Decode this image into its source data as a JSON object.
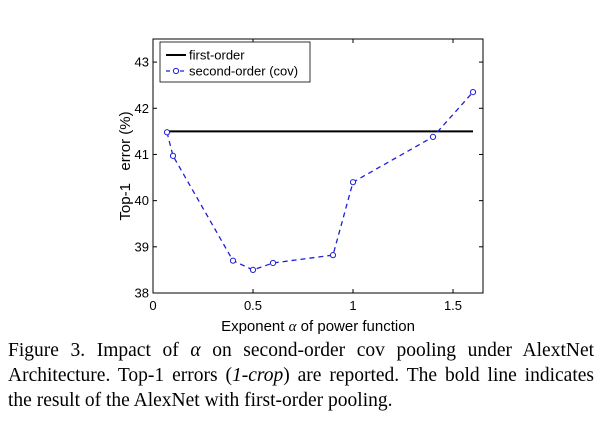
{
  "chart_data": {
    "type": "line",
    "title": "",
    "xlabel_prefix": "Exponent",
    "xlabel_symbol": "α",
    "xlabel_suffix": "of power function",
    "ylabel": "Top-1   error (%)",
    "xlim": [
      0,
      1.65
    ],
    "ylim": [
      38,
      43.5
    ],
    "x_ticks": [
      0,
      0.5,
      1,
      1.5
    ],
    "x_tick_labels": [
      "0",
      "0.5",
      "1",
      "1.5"
    ],
    "y_ticks": [
      38,
      39,
      40,
      41,
      42,
      43
    ],
    "y_tick_labels": [
      "38",
      "39",
      "40",
      "41",
      "42",
      "43"
    ],
    "grid": false,
    "legend_position": "top-left",
    "series": [
      {
        "name": "first-order",
        "style": "solid",
        "color": "#000000",
        "x": [
          0.07,
          1.6
        ],
        "y": [
          41.5,
          41.5
        ]
      },
      {
        "name": "second-order (cov)",
        "style": "dashed",
        "marker": "circle",
        "color": "#1f1fd9",
        "x": [
          0.07,
          0.1,
          0.4,
          0.5,
          0.6,
          0.9,
          1.0,
          1.4,
          1.6
        ],
        "y": [
          41.48,
          40.97,
          38.7,
          38.5,
          38.65,
          38.82,
          40.4,
          41.38,
          42.35
        ]
      }
    ]
  },
  "caption": {
    "prefix": "Figure 3. Impact of",
    "symbol": "α",
    "middle": "on second-order cov pooling under AlextNet Architecture. Top-1 errors (",
    "italic": "1-crop",
    "suffix": ") are reported. The bold line indicates the result of the AlexNet with first-order pooling."
  }
}
